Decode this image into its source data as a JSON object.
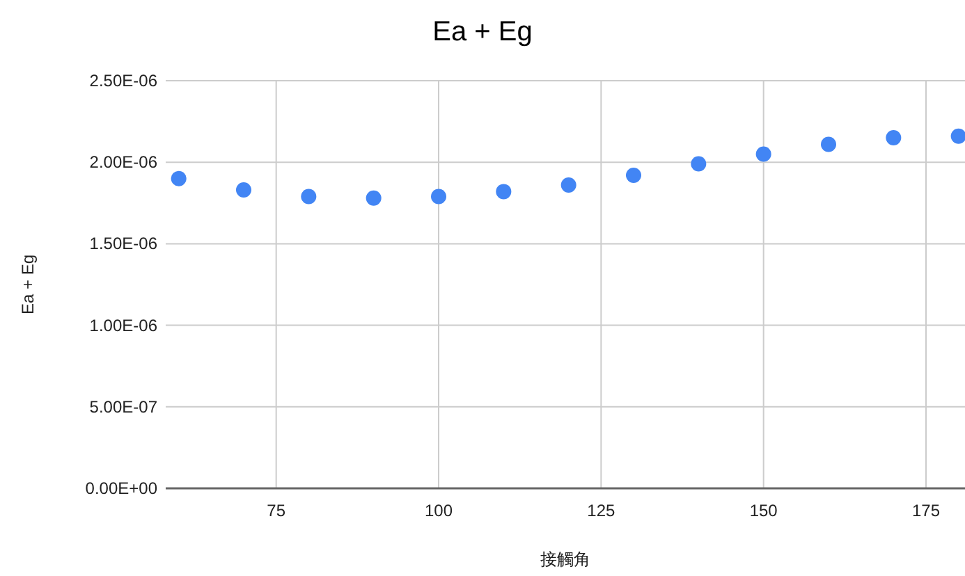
{
  "chart_data": {
    "type": "scatter",
    "title": "Ea + Eg",
    "xlabel": "接觸角",
    "ylabel": "Ea + Eg",
    "x": [
      60,
      70,
      80,
      90,
      100,
      110,
      120,
      130,
      140,
      150,
      160,
      170,
      180
    ],
    "series": [
      {
        "color": "#4285f4",
        "values": [
          1.9e-06,
          1.83e-06,
          1.79e-06,
          1.78e-06,
          1.79e-06,
          1.82e-06,
          1.86e-06,
          1.92e-06,
          1.99e-06,
          2.05e-06,
          2.11e-06,
          2.15e-06,
          2.16e-06
        ]
      }
    ],
    "xlim": [
      58,
      181
    ],
    "xticks": [
      75,
      100,
      125,
      150,
      175
    ],
    "ylim": [
      0,
      2.5e-06
    ],
    "yticks": [
      {
        "value": 0,
        "label": "0.00E+00"
      },
      {
        "value": 5e-07,
        "label": "5.00E-07"
      },
      {
        "value": 1e-06,
        "label": "1.00E-06"
      },
      {
        "value": 1.5e-06,
        "label": "1.50E-06"
      },
      {
        "value": 2e-06,
        "label": "2.00E-06"
      },
      {
        "value": 2.5e-06,
        "label": "2.50E-06"
      }
    ],
    "grid": true,
    "marker": "circle"
  }
}
